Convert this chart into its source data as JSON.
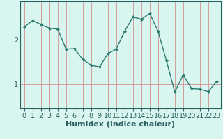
{
  "x": [
    0,
    1,
    2,
    3,
    4,
    5,
    6,
    7,
    8,
    9,
    10,
    11,
    12,
    13,
    14,
    15,
    16,
    17,
    18,
    19,
    20,
    21,
    22,
    23
  ],
  "y": [
    2.28,
    2.42,
    2.33,
    2.25,
    2.23,
    1.78,
    1.79,
    1.55,
    1.42,
    1.38,
    1.68,
    1.78,
    2.18,
    2.5,
    2.45,
    2.58,
    2.18,
    1.52,
    0.82,
    1.2,
    0.9,
    0.88,
    0.83,
    1.05
  ],
  "line_color": "#2a7a6e",
  "marker": "D",
  "marker_size": 2.0,
  "line_width": 1.0,
  "bg_color": "#d8f5f0",
  "grid_color": "#d09090",
  "xlabel": "Humidex (Indice chaleur)",
  "xlabel_fontsize": 8,
  "yticks": [
    1,
    2
  ],
  "xtick_labels": [
    "0",
    "1",
    "2",
    "3",
    "4",
    "5",
    "6",
    "7",
    "8",
    "9",
    "10",
    "11",
    "12",
    "13",
    "14",
    "15",
    "16",
    "17",
    "18",
    "19",
    "20",
    "21",
    "22",
    "23"
  ],
  "ylim": [
    0.45,
    2.85
  ],
  "xlim": [
    -0.5,
    23.5
  ],
  "tick_fontsize": 7,
  "label_color": "#2a6060",
  "spine_color": "#2a6060"
}
